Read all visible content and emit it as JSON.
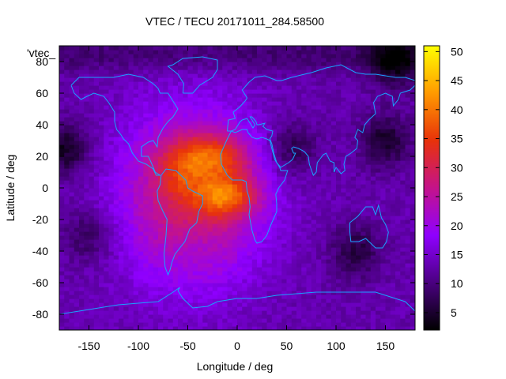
{
  "chart_data": {
    "type": "heatmap",
    "title": "VTEC / TECU 20171011_284.58500",
    "xlabel": "Longitude / deg",
    "ylabel": "Latitude / deg",
    "key_label": "'vtec_",
    "xlim": [
      -180,
      180
    ],
    "ylim": [
      -90,
      90
    ],
    "x_ticks": [
      -150,
      -100,
      -50,
      0,
      50,
      100,
      150
    ],
    "y_ticks": [
      -80,
      -60,
      -40,
      -20,
      0,
      20,
      40,
      60,
      80
    ],
    "colorbar": {
      "range": [
        2,
        51
      ],
      "ticks": [
        5,
        10,
        15,
        20,
        25,
        30,
        35,
        40,
        45,
        50
      ]
    },
    "colormap_stops": [
      "#000000",
      "#4a0080",
      "#8f00ff",
      "#c4138a",
      "#e8320a",
      "#ff9a00",
      "#ffff00"
    ],
    "grid_resolution_deg": {
      "lon": 5,
      "lat": 2.5
    },
    "features": [
      {
        "name": "equatorial-anomaly-north",
        "lon": -30,
        "lat": 20,
        "peak": 44,
        "sigma_lon": 28,
        "sigma_lat": 10
      },
      {
        "name": "equatorial-anomaly-south",
        "lon": -10,
        "lat": -5,
        "peak": 45,
        "sigma_lon": 22,
        "sigma_lat": 9
      },
      {
        "name": "crest-west",
        "lon": -60,
        "lat": 5,
        "peak": 34,
        "sigma_lon": 15,
        "sigma_lat": 10
      },
      {
        "name": "southern-lobe",
        "lon": -45,
        "lat": -35,
        "peak": 28,
        "sigma_lon": 15,
        "sigma_lat": 12
      }
    ],
    "background_level": 13,
    "bright_region": {
      "lon": -45,
      "lat": -5,
      "value": 30,
      "sigma_lon": 50,
      "sigma_lat": 38
    },
    "dark_patches": [
      {
        "lon": 150,
        "lat": 30,
        "value": 5
      },
      {
        "lon": -175,
        "lat": 25,
        "value": 4
      },
      {
        "lon": 160,
        "lat": 80,
        "value": 4
      },
      {
        "lon": 120,
        "lat": -40,
        "value": 6
      },
      {
        "lon": 55,
        "lat": 25,
        "value": 6
      },
      {
        "lon": -150,
        "lat": -30,
        "value": 7
      }
    ]
  },
  "continents": [
    {
      "name": "north-america",
      "points": [
        [
          -168,
          65
        ],
        [
          -160,
          70
        ],
        [
          -140,
          70
        ],
        [
          -125,
          70
        ],
        [
          -110,
          72
        ],
        [
          -95,
          70
        ],
        [
          -85,
          66
        ],
        [
          -80,
          63
        ],
        [
          -78,
          60
        ],
        [
          -70,
          60
        ],
        [
          -65,
          55
        ],
        [
          -60,
          50
        ],
        [
          -65,
          45
        ],
        [
          -70,
          42
        ],
        [
          -75,
          38
        ],
        [
          -80,
          32
        ],
        [
          -81,
          26
        ],
        [
          -85,
          30
        ],
        [
          -90,
          29
        ],
        [
          -97,
          26
        ],
        [
          -97,
          20
        ],
        [
          -90,
          20
        ],
        [
          -87,
          16
        ],
        [
          -83,
          10
        ],
        [
          -78,
          8
        ],
        [
          -82,
          8
        ],
        [
          -85,
          12
        ],
        [
          -92,
          15
        ],
        [
          -100,
          17
        ],
        [
          -106,
          22
        ],
        [
          -110,
          28
        ],
        [
          -115,
          31
        ],
        [
          -118,
          34
        ],
        [
          -122,
          37
        ],
        [
          -124,
          42
        ],
        [
          -124,
          48
        ],
        [
          -130,
          54
        ],
        [
          -135,
          58
        ],
        [
          -145,
          60
        ],
        [
          -152,
          58
        ],
        [
          -158,
          56
        ],
        [
          -165,
          60
        ],
        [
          -168,
          65
        ]
      ]
    },
    {
      "name": "greenland",
      "points": [
        [
          -55,
          60
        ],
        [
          -45,
          60
        ],
        [
          -38,
          65
        ],
        [
          -25,
          70
        ],
        [
          -20,
          75
        ],
        [
          -20,
          81
        ],
        [
          -35,
          83
        ],
        [
          -55,
          82
        ],
        [
          -65,
          78
        ],
        [
          -70,
          77
        ],
        [
          -60,
          72
        ],
        [
          -54,
          66
        ],
        [
          -55,
          60
        ]
      ]
    },
    {
      "name": "south-america",
      "points": [
        [
          -77,
          8
        ],
        [
          -72,
          12
        ],
        [
          -62,
          11
        ],
        [
          -52,
          5
        ],
        [
          -50,
          0
        ],
        [
          -45,
          -2
        ],
        [
          -35,
          -5
        ],
        [
          -35,
          -10
        ],
        [
          -39,
          -15
        ],
        [
          -41,
          -22
        ],
        [
          -48,
          -26
        ],
        [
          -53,
          -34
        ],
        [
          -58,
          -38
        ],
        [
          -63,
          -42
        ],
        [
          -66,
          -47
        ],
        [
          -68,
          -52
        ],
        [
          -70,
          -55
        ],
        [
          -73,
          -50
        ],
        [
          -74,
          -42
        ],
        [
          -72,
          -30
        ],
        [
          -71,
          -20
        ],
        [
          -75,
          -15
        ],
        [
          -80,
          -8
        ],
        [
          -81,
          -2
        ],
        [
          -78,
          2
        ],
        [
          -77,
          8
        ]
      ]
    },
    {
      "name": "africa",
      "points": [
        [
          -17,
          21
        ],
        [
          -16,
          15
        ],
        [
          -10,
          8
        ],
        [
          -5,
          5
        ],
        [
          5,
          5
        ],
        [
          9,
          4
        ],
        [
          10,
          -2
        ],
        [
          12,
          -6
        ],
        [
          13,
          -12
        ],
        [
          12,
          -17
        ],
        [
          15,
          -27
        ],
        [
          18,
          -33
        ],
        [
          20,
          -35
        ],
        [
          25,
          -34
        ],
        [
          30,
          -30
        ],
        [
          33,
          -25
        ],
        [
          35,
          -22
        ],
        [
          40,
          -15
        ],
        [
          40,
          -10
        ],
        [
          39,
          -4
        ],
        [
          42,
          0
        ],
        [
          48,
          5
        ],
        [
          51,
          11
        ],
        [
          44,
          11
        ],
        [
          43,
          13
        ],
        [
          38,
          18
        ],
        [
          35,
          25
        ],
        [
          33,
          30
        ],
        [
          30,
          31
        ],
        [
          25,
          32
        ],
        [
          20,
          31
        ],
        [
          15,
          32
        ],
        [
          11,
          35
        ],
        [
          10,
          37
        ],
        [
          5,
          37
        ],
        [
          -2,
          35
        ],
        [
          -6,
          36
        ],
        [
          -10,
          31
        ],
        [
          -13,
          27
        ],
        [
          -17,
          21
        ]
      ]
    },
    {
      "name": "eurasia",
      "points": [
        [
          -10,
          36
        ],
        [
          -9,
          43
        ],
        [
          -2,
          44
        ],
        [
          -4,
          48
        ],
        [
          2,
          51
        ],
        [
          5,
          53
        ],
        [
          8,
          55
        ],
        [
          10,
          57
        ],
        [
          5,
          62
        ],
        [
          12,
          67
        ],
        [
          18,
          70
        ],
        [
          28,
          71
        ],
        [
          40,
          68
        ],
        [
          45,
          68
        ],
        [
          55,
          70
        ],
        [
          68,
          72
        ],
        [
          75,
          73
        ],
        [
          90,
          76
        ],
        [
          105,
          78
        ],
        [
          120,
          73
        ],
        [
          130,
          72
        ],
        [
          140,
          72
        ],
        [
          160,
          70
        ],
        [
          170,
          70
        ],
        [
          180,
          68
        ],
        [
          180,
          65
        ],
        [
          175,
          62
        ],
        [
          165,
          60
        ],
        [
          163,
          56
        ],
        [
          158,
          52
        ],
        [
          157,
          58
        ],
        [
          150,
          60
        ],
        [
          142,
          58
        ],
        [
          138,
          54
        ],
        [
          140,
          47
        ],
        [
          133,
          43
        ],
        [
          129,
          40
        ],
        [
          127,
          35
        ],
        [
          122,
          37
        ],
        [
          119,
          32
        ],
        [
          122,
          30
        ],
        [
          121,
          25
        ],
        [
          115,
          22
        ],
        [
          110,
          20
        ],
        [
          108,
          15
        ],
        [
          109,
          11
        ],
        [
          105,
          9
        ],
        [
          100,
          13
        ],
        [
          98,
          10
        ],
        [
          98,
          16
        ],
        [
          94,
          17
        ],
        [
          90,
          22
        ],
        [
          87,
          21
        ],
        [
          81,
          16
        ],
        [
          80,
          10
        ],
        [
          77,
          8
        ],
        [
          73,
          15
        ],
        [
          72,
          20
        ],
        [
          68,
          23
        ],
        [
          62,
          25
        ],
        [
          57,
          26
        ],
        [
          55,
          25
        ],
        [
          57,
          22
        ],
        [
          59,
          22
        ],
        [
          56,
          18
        ],
        [
          52,
          16
        ],
        [
          44,
          13
        ],
        [
          40,
          16
        ],
        [
          37,
          22
        ],
        [
          35,
          28
        ],
        [
          33,
          31
        ],
        [
          35,
          33
        ],
        [
          36,
          36
        ],
        [
          30,
          37
        ],
        [
          26,
          39
        ],
        [
          28,
          41
        ],
        [
          22,
          40
        ],
        [
          20,
          40
        ],
        [
          19,
          42
        ],
        [
          15,
          45
        ],
        [
          13,
          45
        ],
        [
          18,
          40
        ],
        [
          16,
          38
        ],
        [
          12,
          42
        ],
        [
          10,
          44
        ],
        [
          5,
          43
        ],
        [
          3,
          42
        ],
        [
          0,
          39
        ],
        [
          -2,
          37
        ],
        [
          -6,
          36
        ],
        [
          -10,
          36
        ]
      ]
    },
    {
      "name": "australia",
      "points": [
        [
          114,
          -22
        ],
        [
          122,
          -18
        ],
        [
          130,
          -12
        ],
        [
          137,
          -12
        ],
        [
          140,
          -17
        ],
        [
          143,
          -11
        ],
        [
          146,
          -19
        ],
        [
          150,
          -23
        ],
        [
          153,
          -28
        ],
        [
          151,
          -34
        ],
        [
          147,
          -38
        ],
        [
          140,
          -38
        ],
        [
          135,
          -35
        ],
        [
          130,
          -32
        ],
        [
          123,
          -34
        ],
        [
          115,
          -34
        ],
        [
          114,
          -28
        ],
        [
          114,
          -22
        ]
      ]
    },
    {
      "name": "antarctica-main",
      "points": [
        [
          -180,
          -80
        ],
        [
          -160,
          -78
        ],
        [
          -140,
          -76
        ],
        [
          -120,
          -74
        ],
        [
          -100,
          -73
        ],
        [
          -80,
          -72
        ],
        [
          -65,
          -66
        ],
        [
          -58,
          -63
        ],
        [
          -60,
          -65
        ],
        [
          -55,
          -70
        ],
        [
          -45,
          -76
        ],
        [
          -30,
          -75
        ],
        [
          -20,
          -72
        ],
        [
          0,
          -70
        ],
        [
          20,
          -70
        ],
        [
          40,
          -68
        ],
        [
          60,
          -67
        ],
        [
          80,
          -66
        ],
        [
          100,
          -66
        ],
        [
          120,
          -66
        ],
        [
          140,
          -66
        ],
        [
          160,
          -70
        ],
        [
          170,
          -72
        ],
        [
          180,
          -78
        ]
      ]
    }
  ]
}
